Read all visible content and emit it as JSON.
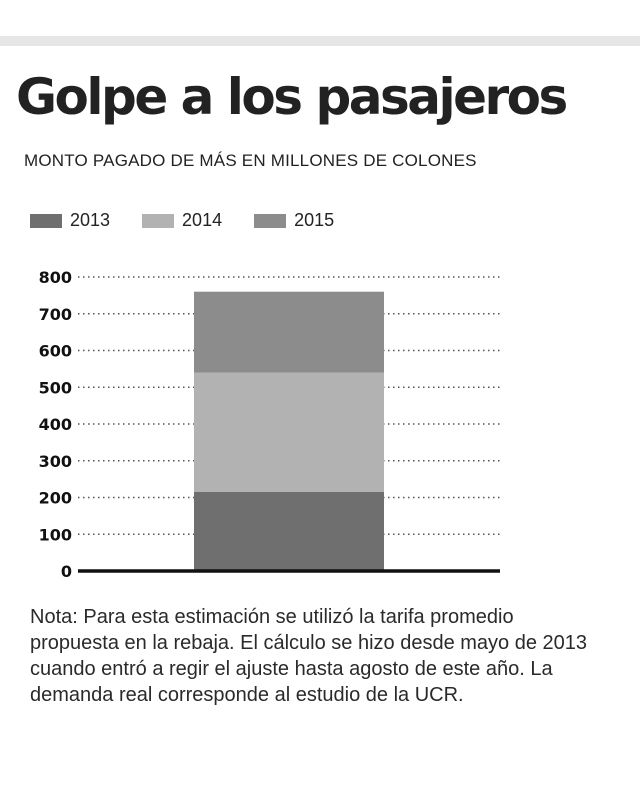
{
  "title": "Golpe a los pasajeros",
  "subtitle": "MONTO PAGADO DE MÁS EN MILLONES DE COLONES",
  "note": "Nota: Para esta estimación se utilizó la tarifa promedio propuesta en la rebaja. El cálculo se hizo desde mayo de 2013 cuando entró a regir el ajuste hasta agosto de este año. La demanda real corresponde al estudio de la UCR.",
  "colors": {
    "s2013": "#6f6f6f",
    "s2014": "#b2b2b2",
    "s2015": "#8c8c8c",
    "axis": "#111111",
    "grid": "#555555"
  },
  "chart_data": {
    "type": "bar",
    "stacked": true,
    "title": "Golpe a los pasajeros",
    "subtitle": "MONTO PAGADO DE MÁS EN MILLONES DE COLONES",
    "xlabel": "",
    "ylabel": "",
    "categories": [
      ""
    ],
    "series": [
      {
        "name": "2013",
        "values": [
          215
        ]
      },
      {
        "name": "2014",
        "values": [
          325
        ]
      },
      {
        "name": "2015",
        "values": [
          220
        ]
      }
    ],
    "ylim": [
      0,
      800
    ],
    "yticks": [
      0,
      100,
      200,
      300,
      400,
      500,
      600,
      700,
      800
    ],
    "grid": true,
    "legend_position": "top-left"
  }
}
